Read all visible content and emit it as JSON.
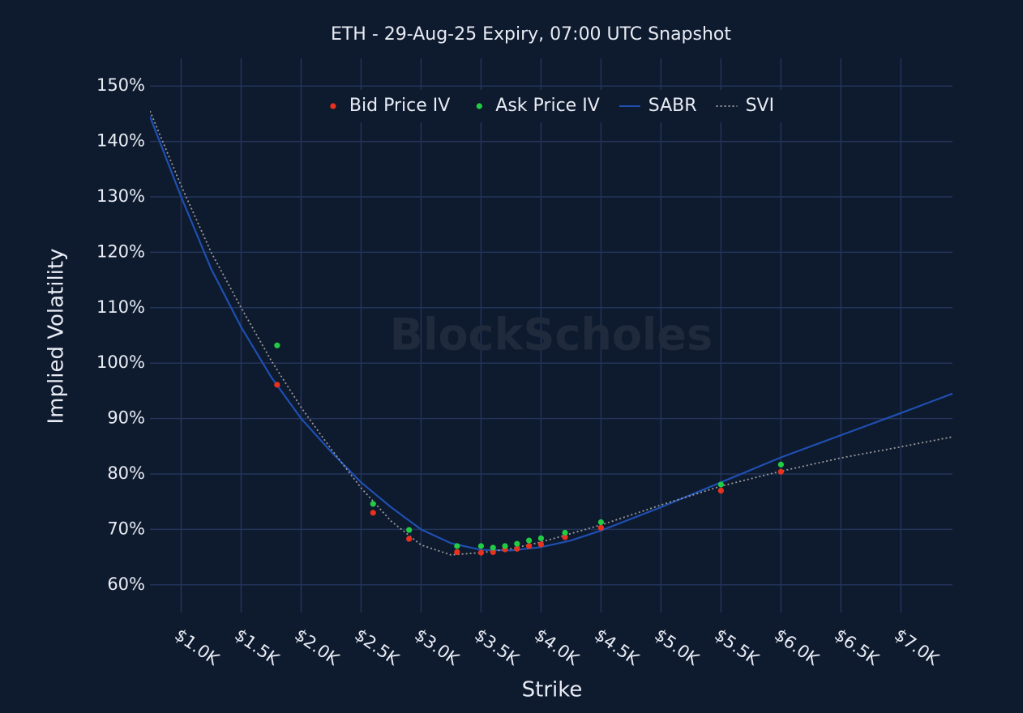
{
  "chart_data": {
    "type": "scatter",
    "title": "ETH - 29-Aug-25 Expiry, 07:00 UTC Snapshot",
    "watermark": "BlockScholes",
    "x_label": "Strike",
    "y_label": "Implied Volatility",
    "xlim": [
      740,
      7430
    ],
    "ylim": [
      55,
      155
    ],
    "xticks": [
      {
        "value": 1000,
        "label": "$1.0K"
      },
      {
        "value": 1500,
        "label": "$1.5K"
      },
      {
        "value": 2000,
        "label": "$2.0K"
      },
      {
        "value": 2500,
        "label": "$2.5K"
      },
      {
        "value": 3000,
        "label": "$3.0K"
      },
      {
        "value": 3500,
        "label": "$3.5K"
      },
      {
        "value": 4000,
        "label": "$4.0K"
      },
      {
        "value": 4500,
        "label": "$4.5K"
      },
      {
        "value": 5000,
        "label": "$5.0K"
      },
      {
        "value": 5500,
        "label": "$5.5K"
      },
      {
        "value": 6000,
        "label": "$6.0K"
      },
      {
        "value": 6500,
        "label": "$6.5K"
      },
      {
        "value": 7000,
        "label": "$7.0K"
      }
    ],
    "yticks": [
      {
        "value": 60,
        "label": "60%"
      },
      {
        "value": 70,
        "label": "70%"
      },
      {
        "value": 80,
        "label": "80%"
      },
      {
        "value": 90,
        "label": "90%"
      },
      {
        "value": 100,
        "label": "100%"
      },
      {
        "value": 110,
        "label": "110%"
      },
      {
        "value": 120,
        "label": "120%"
      },
      {
        "value": 130,
        "label": "130%"
      },
      {
        "value": 140,
        "label": "140%"
      },
      {
        "value": 150,
        "label": "150%"
      }
    ],
    "grid": true,
    "legend": "top",
    "series": [
      {
        "name": "Bid Price IV",
        "color": "#e8321e",
        "style": "markers",
        "x": [
          1800,
          2600,
          2900,
          3300,
          3500,
          3600,
          3700,
          3800,
          3900,
          4000,
          4200,
          4500,
          5500,
          6000
        ],
        "values": [
          96.1,
          73.0,
          68.3,
          65.9,
          65.8,
          65.9,
          66.4,
          66.5,
          67.0,
          67.3,
          68.6,
          70.3,
          77.0,
          80.4
        ]
      },
      {
        "name": "Ask Price IV",
        "color": "#22cc44",
        "style": "markers",
        "x": [
          1800,
          2600,
          2900,
          3300,
          3500,
          3600,
          3700,
          3800,
          3900,
          4000,
          4200,
          4500,
          5500,
          6000
        ],
        "values": [
          103.2,
          74.6,
          69.9,
          67.0,
          67.0,
          66.7,
          67.0,
          67.4,
          68.0,
          68.4,
          69.4,
          71.3,
          78.1,
          81.7
        ]
      },
      {
        "name": "SABR",
        "color": "#1f4fb0",
        "style": "line",
        "x": [
          740,
          1000,
          1250,
          1500,
          1750,
          2000,
          2250,
          2500,
          2750,
          3000,
          3250,
          3500,
          3750,
          4000,
          4250,
          4500,
          5000,
          5500,
          6000,
          6500,
          7000,
          7430
        ],
        "values": [
          144.5,
          130,
          117,
          106.5,
          97.5,
          90,
          84,
          78.5,
          74,
          70,
          67.5,
          66.3,
          66.2,
          66.8,
          68,
          69.8,
          74,
          78.5,
          83,
          87,
          91,
          94.5
        ]
      },
      {
        "name": "SVI",
        "color": "#9a9a9a",
        "style": "dotted",
        "x": [
          740,
          1000,
          1250,
          1500,
          1750,
          2000,
          2250,
          2500,
          2750,
          3000,
          3250,
          3500,
          3750,
          4000,
          4500,
          5000,
          5500,
          6000,
          6500,
          7000,
          7430
        ],
        "values": [
          145.5,
          132,
          120,
          110,
          100.5,
          92,
          84.5,
          77.5,
          71.5,
          67.2,
          65.4,
          65.8,
          66.5,
          67.7,
          70.8,
          74.4,
          77.8,
          80.5,
          82.9,
          84.9,
          86.7
        ]
      }
    ]
  }
}
